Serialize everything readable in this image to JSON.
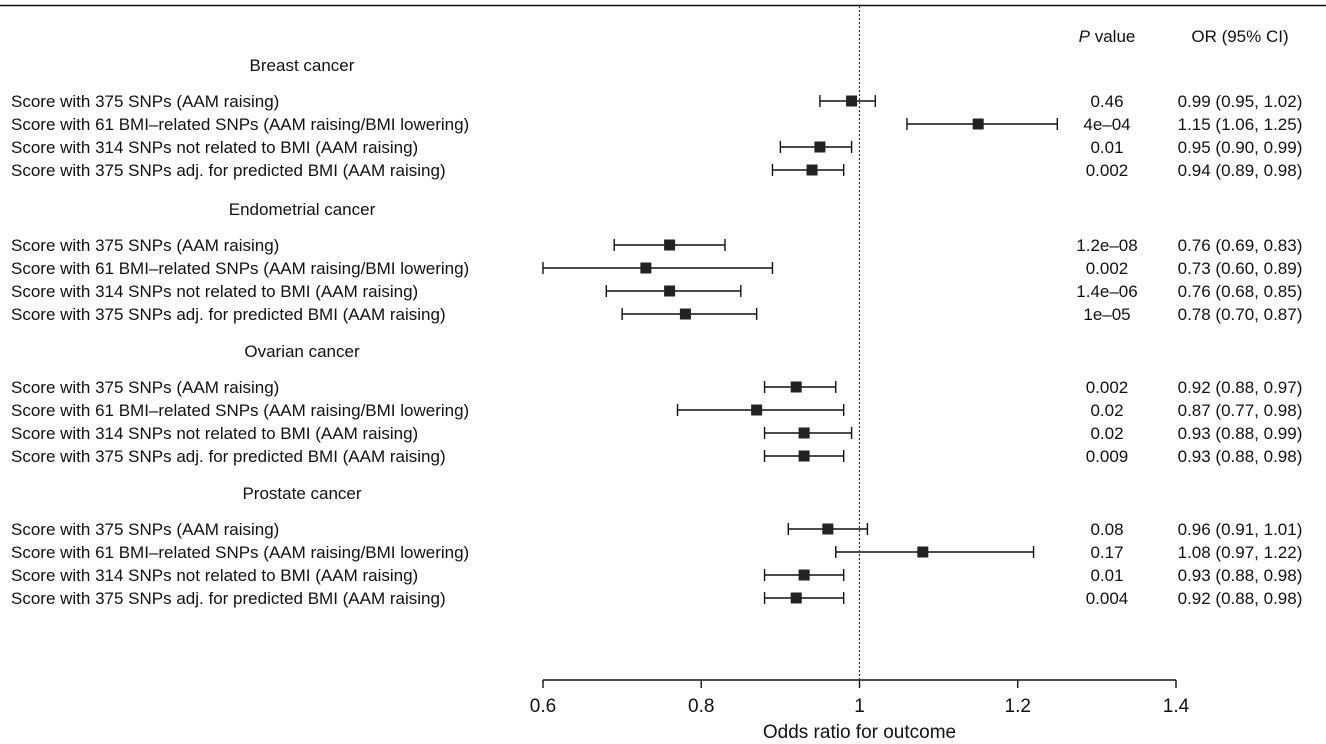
{
  "chart_data": {
    "type": "forest",
    "xlabel": "Odds ratio for outcome",
    "xlim": [
      0.6,
      1.4
    ],
    "xticks": [
      0.6,
      0.8,
      1.0,
      1.2,
      1.4
    ],
    "xtick_labels": [
      "0.6",
      "0.8",
      "1",
      "1.2",
      "1.4"
    ],
    "reference_line": 1.0,
    "columns": {
      "p_value_italic": "P",
      "p_value_rest": " value",
      "or_ci": "OR (95% CI)"
    },
    "groups": [
      {
        "name": "Breast cancer",
        "rows": [
          {
            "label": "Score with 375 SNPs (AAM raising)",
            "or": 0.99,
            "lo": 0.95,
            "hi": 1.02,
            "p": "0.46",
            "ci_text": "0.99 (0.95, 1.02)"
          },
          {
            "label": "Score with 61 BMI–related SNPs (AAM raising/BMI lowering)",
            "or": 1.15,
            "lo": 1.06,
            "hi": 1.25,
            "p": "4e–04",
            "ci_text": "1.15 (1.06, 1.25)"
          },
          {
            "label": "Score with 314 SNPs not related to BMI (AAM raising)",
            "or": 0.95,
            "lo": 0.9,
            "hi": 0.99,
            "p": "0.01",
            "ci_text": "0.95 (0.90, 0.99)"
          },
          {
            "label": "Score with 375 SNPs adj. for predicted BMI (AAM raising)",
            "or": 0.94,
            "lo": 0.89,
            "hi": 0.98,
            "p": "0.002",
            "ci_text": "0.94 (0.89, 0.98)"
          }
        ]
      },
      {
        "name": "Endometrial cancer",
        "rows": [
          {
            "label": "Score with 375 SNPs (AAM raising)",
            "or": 0.76,
            "lo": 0.69,
            "hi": 0.83,
            "p": "1.2e–08",
            "ci_text": "0.76 (0.69, 0.83)"
          },
          {
            "label": "Score with 61 BMI–related SNPs (AAM raising/BMI lowering)",
            "or": 0.73,
            "lo": 0.6,
            "hi": 0.89,
            "p": "0.002",
            "ci_text": "0.73 (0.60, 0.89)"
          },
          {
            "label": "Score with 314 SNPs not related to BMI (AAM raising)",
            "or": 0.76,
            "lo": 0.68,
            "hi": 0.85,
            "p": "1.4e–06",
            "ci_text": "0.76 (0.68, 0.85)"
          },
          {
            "label": "Score with 375 SNPs adj. for predicted BMI (AAM raising)",
            "or": 0.78,
            "lo": 0.7,
            "hi": 0.87,
            "p": "1e–05",
            "ci_text": "0.78 (0.70, 0.87)"
          }
        ]
      },
      {
        "name": "Ovarian cancer",
        "rows": [
          {
            "label": "Score with 375 SNPs (AAM raising)",
            "or": 0.92,
            "lo": 0.88,
            "hi": 0.97,
            "p": "0.002",
            "ci_text": "0.92 (0.88, 0.97)"
          },
          {
            "label": "Score with 61 BMI–related SNPs (AAM raising/BMI lowering)",
            "or": 0.87,
            "lo": 0.77,
            "hi": 0.98,
            "p": "0.02",
            "ci_text": "0.87 (0.77, 0.98)"
          },
          {
            "label": "Score with 314 SNPs not related to BMI (AAM raising)",
            "or": 0.93,
            "lo": 0.88,
            "hi": 0.99,
            "p": "0.02",
            "ci_text": "0.93 (0.88, 0.99)"
          },
          {
            "label": "Score with 375 SNPs adj. for predicted BMI (AAM raising)",
            "or": 0.93,
            "lo": 0.88,
            "hi": 0.98,
            "p": "0.009",
            "ci_text": "0.93 (0.88, 0.98)"
          }
        ]
      },
      {
        "name": "Prostate cancer",
        "rows": [
          {
            "label": "Score with 375 SNPs (AAM raising)",
            "or": 0.96,
            "lo": 0.91,
            "hi": 1.01,
            "p": "0.08",
            "ci_text": "0.96 (0.91, 1.01)"
          },
          {
            "label": "Score with 61 BMI–related SNPs (AAM raising/BMI lowering)",
            "or": 1.08,
            "lo": 0.97,
            "hi": 1.22,
            "p": "0.17",
            "ci_text": "1.08 (0.97, 1.22)"
          },
          {
            "label": "Score with 314 SNPs not related to BMI (AAM raising)",
            "or": 0.93,
            "lo": 0.88,
            "hi": 0.98,
            "p": "0.01",
            "ci_text": "0.93 (0.88, 0.98)"
          },
          {
            "label": "Score with 375 SNPs adj. for predicted BMI (AAM raising)",
            "or": 0.92,
            "lo": 0.88,
            "hi": 0.98,
            "p": "0.004",
            "ci_text": "0.92 (0.88, 0.98)"
          }
        ]
      }
    ],
    "marker_color": "#222222"
  }
}
